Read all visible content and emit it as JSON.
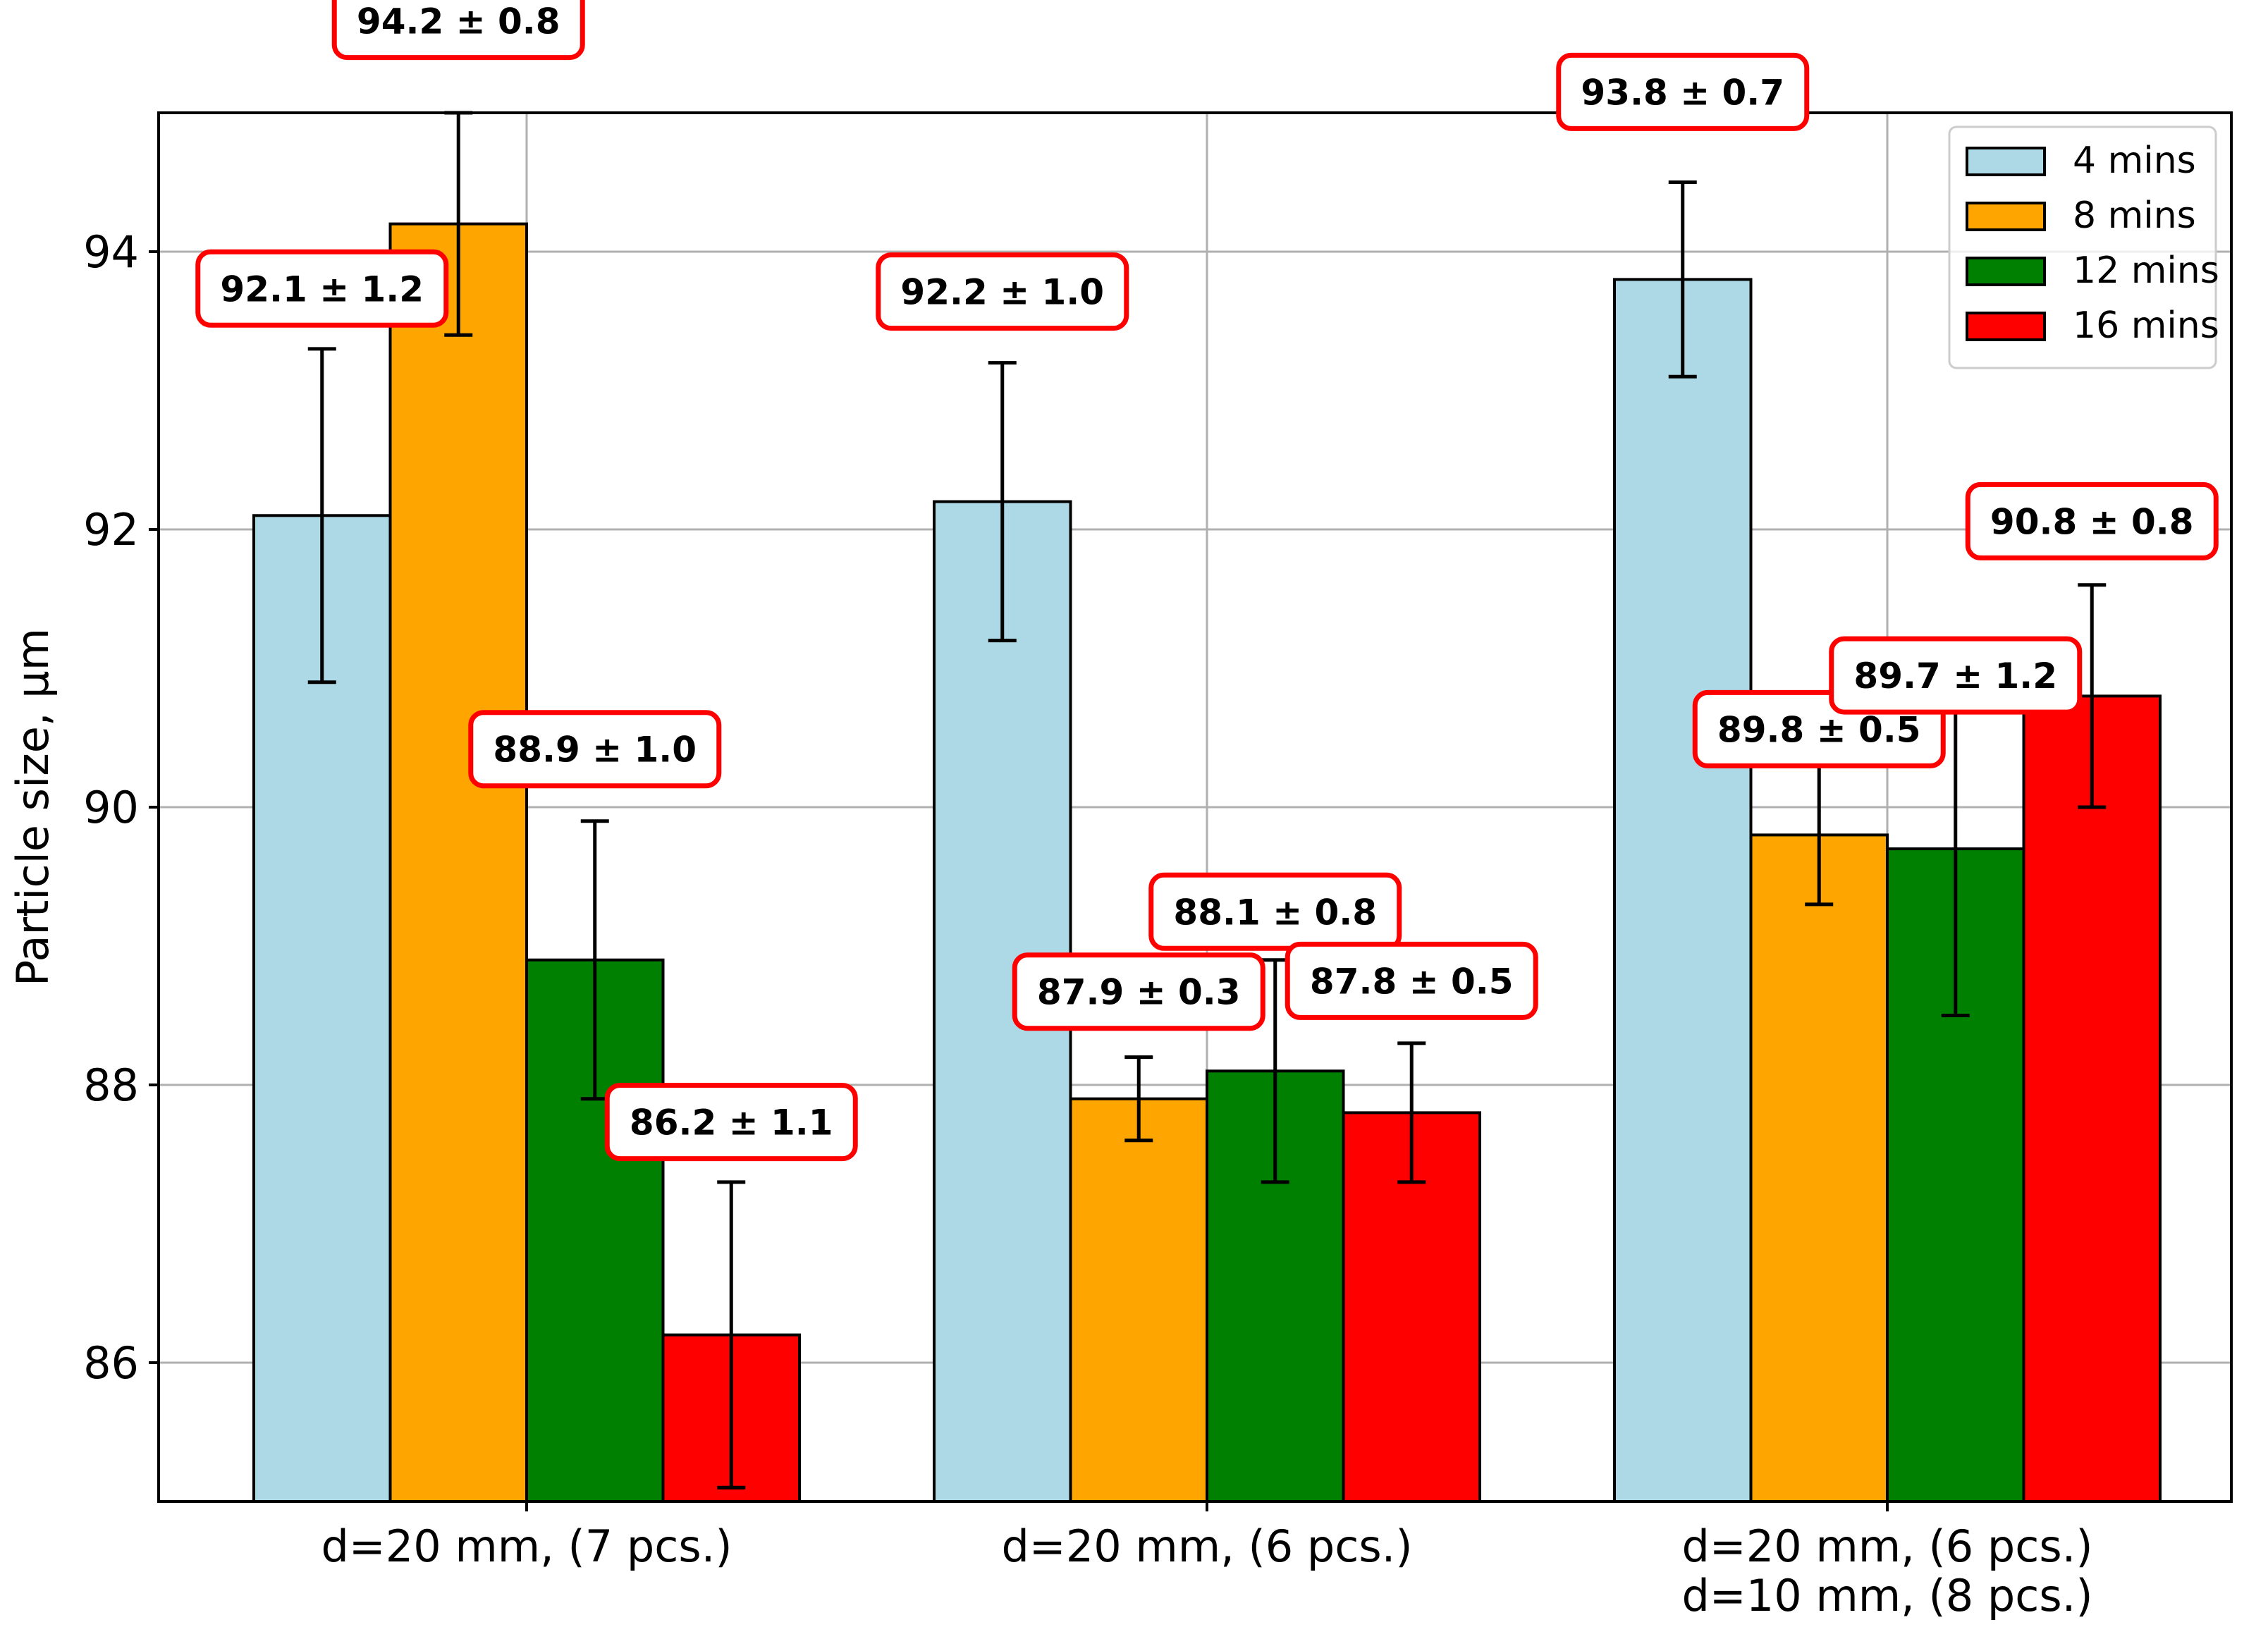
{
  "chart_data": {
    "type": "bar",
    "title": "",
    "xlabel": "",
    "ylabel": "Particle size, µm",
    "ylim": [
      85,
      95
    ],
    "yticks": [
      "86",
      "88",
      "90",
      "92",
      "94"
    ],
    "grid": true,
    "legend_position": "top-right",
    "categories": [
      {
        "lines": [
          "d=20 mm, (7 pcs.)"
        ]
      },
      {
        "lines": [
          "d=20 mm, (6 pcs.)"
        ]
      },
      {
        "lines": [
          "d=20 mm, (6 pcs.)",
          "d=10 mm, (8 pcs.)"
        ]
      }
    ],
    "series": [
      {
        "name": "4 mins",
        "color": "#add8e6",
        "values": [
          92.1,
          92.2,
          93.8
        ],
        "errors": [
          1.2,
          1.0,
          0.7
        ],
        "labels": [
          "92.1 ± 1.2",
          "92.2 ± 1.0",
          "93.8 ± 0.7"
        ]
      },
      {
        "name": "8 mins",
        "color": "#ffa500",
        "values": [
          94.2,
          87.9,
          89.8
        ],
        "errors": [
          0.8,
          0.3,
          0.5
        ],
        "labels": [
          "94.2 ± 0.8",
          "87.9 ± 0.3",
          "89.8 ± 0.5"
        ]
      },
      {
        "name": "12 mins",
        "color": "#008000",
        "values": [
          88.9,
          88.1,
          89.7
        ],
        "errors": [
          1.0,
          0.8,
          1.2
        ],
        "labels": [
          "88.9 ± 1.0",
          "88.1 ± 0.8",
          "89.7 ± 1.2"
        ]
      },
      {
        "name": "16 mins",
        "color": "#ff0000",
        "values": [
          86.2,
          87.8,
          90.8
        ],
        "errors": [
          1.1,
          0.5,
          0.8
        ],
        "labels": [
          "86.2 ± 1.1",
          "87.8 ± 0.5",
          "90.8 ± 0.8"
        ]
      }
    ]
  }
}
